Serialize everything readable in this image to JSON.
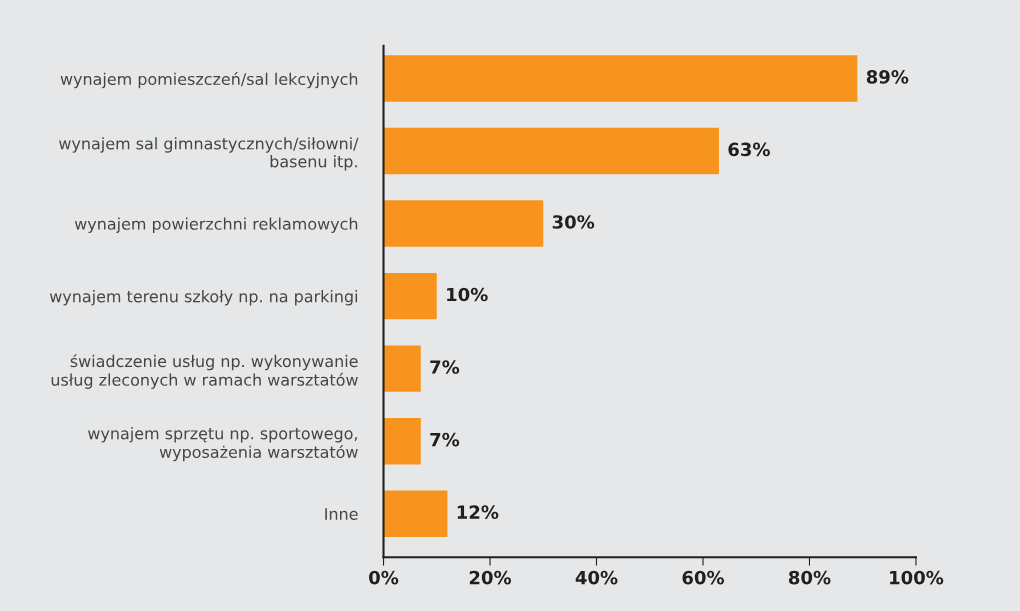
{
  "chart_data": {
    "type": "bar",
    "orientation": "horizontal",
    "categories": [
      "wynajem pomieszczeń/sal lekcyjnych",
      "wynajem sal gimnastycznych/siłowni/\nbasenu itp.",
      "wynajem powierzchni reklamowych",
      "wynajem terenu szkoły np. na parkingi",
      "świadczenie usług np. wykonywanie\nusług zleconych w ramach warsztatów",
      "wynajem sprzętu np. sportowego,\nwyposażenia warsztatów",
      "Inne"
    ],
    "values": [
      89,
      63,
      30,
      10,
      7,
      7,
      12
    ],
    "value_labels": [
      "89%",
      "63%",
      "30%",
      "10%",
      "7%",
      "7%",
      "12%"
    ],
    "color": "#f7941d",
    "xlim": [
      0,
      100
    ],
    "xticks": [
      {
        "value": 0,
        "label": "0%"
      },
      {
        "value": 20,
        "label": "20%"
      },
      {
        "value": 40,
        "label": "40%"
      },
      {
        "value": 60,
        "label": "60%"
      },
      {
        "value": 80,
        "label": "80%"
      },
      {
        "value": 100,
        "label": "100%"
      }
    ],
    "grid": false,
    "legend": false
  }
}
